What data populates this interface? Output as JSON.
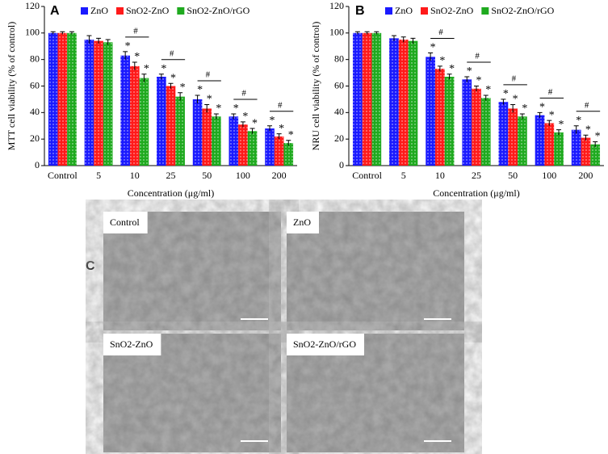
{
  "chart_data": [
    {
      "type": "bar",
      "panel_label": "A",
      "ylabel": "MTT cell viability  (% of control)",
      "xlabel": "Concentration  (μg/ml)",
      "categories": [
        "Control",
        "5",
        "10",
        "25",
        "50",
        "100",
        "200"
      ],
      "ylim": [
        0,
        120
      ],
      "yticks": [
        0,
        20,
        40,
        60,
        80,
        100,
        120
      ],
      "legend": "top",
      "group_significance": [
        null,
        null,
        "#",
        "#",
        "#",
        "#",
        "#"
      ],
      "series": [
        {
          "name": "ZnO",
          "color": "#1a1aff",
          "values": [
            100,
            95,
            83,
            67,
            50,
            37,
            28
          ],
          "errors": [
            1,
            3,
            3,
            2,
            3,
            2,
            2
          ],
          "significance": [
            null,
            null,
            "*",
            "*",
            "*",
            "*",
            "*"
          ]
        },
        {
          "name": "SnO2-ZnO",
          "color": "#ff1a1a",
          "values": [
            100,
            94,
            75,
            60,
            43,
            31,
            22
          ],
          "errors": [
            1,
            2,
            3,
            2,
            3,
            2,
            2
          ],
          "significance": [
            null,
            null,
            "*",
            "*",
            "*",
            "*",
            "*"
          ]
        },
        {
          "name": "SnO2-ZnO/rGO",
          "color": "#1faa1f",
          "values": [
            100,
            93,
            66,
            52,
            37,
            26,
            17
          ],
          "errors": [
            1,
            2,
            3,
            3,
            2,
            2,
            2
          ],
          "significance": [
            null,
            null,
            "*",
            "*",
            "*",
            "*",
            "*"
          ]
        }
      ]
    },
    {
      "type": "bar",
      "panel_label": "B",
      "ylabel": "NRU cell viability  (% of control)",
      "xlabel": "Concentration  (μg/ml)",
      "categories": [
        "Control",
        "5",
        "10",
        "25",
        "50",
        "100",
        "200"
      ],
      "ylim": [
        0,
        120
      ],
      "yticks": [
        0,
        20,
        40,
        60,
        80,
        100,
        120
      ],
      "legend": "top",
      "group_significance": [
        null,
        null,
        "#",
        "#",
        "#",
        "#",
        "#"
      ],
      "series": [
        {
          "name": "ZnO",
          "color": "#1a1aff",
          "values": [
            100,
            96,
            82,
            65,
            48,
            38,
            27
          ],
          "errors": [
            1,
            2,
            3,
            2,
            2,
            2,
            3
          ],
          "significance": [
            null,
            null,
            "*",
            "*",
            "*",
            "*",
            "*"
          ]
        },
        {
          "name": "SnO2-ZnO",
          "color": "#ff1a1a",
          "values": [
            100,
            95,
            73,
            58,
            43,
            32,
            21
          ],
          "errors": [
            1,
            2,
            2,
            2,
            3,
            2,
            2
          ],
          "significance": [
            null,
            null,
            "*",
            "*",
            "*",
            "*",
            "*"
          ]
        },
        {
          "name": "SnO2-ZnO/rGO",
          "color": "#1faa1f",
          "values": [
            100,
            94,
            67,
            51,
            37,
            25,
            16
          ],
          "errors": [
            1,
            2,
            2,
            2,
            2,
            2,
            2
          ],
          "significance": [
            null,
            null,
            "*",
            "*",
            "*",
            "*",
            "*"
          ]
        }
      ]
    }
  ],
  "micrographs": {
    "panel_label": "C",
    "panels": [
      "Control",
      "ZnO",
      "SnO2-ZnO",
      "SnO2-ZnO/rGO"
    ]
  }
}
